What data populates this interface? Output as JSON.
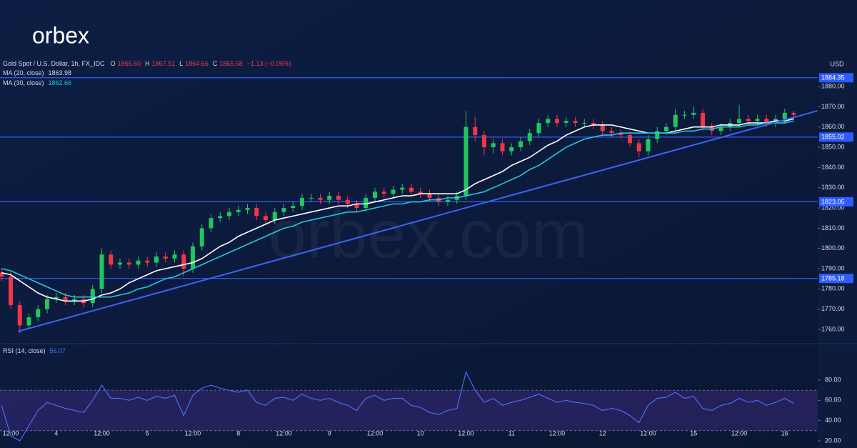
{
  "logo": "orbex",
  "watermark": "orbex.com",
  "chart_data": {
    "type": "candlestick",
    "legend": {
      "symbol": "Gold Spot / U.S. Dollar, 1h, FX_IDC",
      "o_label": "O",
      "o": "1866.60",
      "h_label": "H",
      "h": "1867.51",
      "l_label": "L",
      "l": "1864.66",
      "c_label": "C",
      "c": "1865.68",
      "change": "−1.13 (−0.06%)"
    },
    "currency": "USD",
    "categories": [
      null,
      "12:00",
      null,
      null,
      null,
      null,
      "4",
      null,
      null,
      null,
      null,
      "12:00",
      null,
      null,
      null,
      null,
      "5",
      null,
      null,
      null,
      null,
      "12:00",
      null,
      null,
      null,
      null,
      "8",
      null,
      null,
      null,
      null,
      "12:00",
      null,
      null,
      null,
      null,
      "9",
      null,
      null,
      null,
      null,
      "12:00",
      null,
      null,
      null,
      null,
      "10",
      null,
      null,
      null,
      null,
      "12:00",
      null,
      null,
      null,
      null,
      "11",
      null,
      null,
      null,
      null,
      "12:00",
      null,
      null,
      null,
      null,
      "12",
      null,
      null,
      null,
      null,
      "12:00",
      null,
      null,
      null,
      null,
      "15",
      null,
      null,
      null,
      null,
      "12:00",
      null,
      null,
      null,
      null,
      "16",
      null
    ],
    "open": [
      1788,
      1786,
      1772,
      1762,
      1766,
      1770,
      1775,
      1776,
      1774,
      1775,
      1773,
      1780,
      1797,
      1792,
      1793,
      1792,
      1794,
      1793,
      1796,
      1795,
      1797,
      1790,
      1801,
      1810,
      1815,
      1816,
      1818,
      1819,
      1820,
      1816,
      1814,
      1818,
      1820,
      1821,
      1825,
      1825,
      1824,
      1826,
      1824,
      1822,
      1820,
      1825,
      1828,
      1827,
      1829,
      1830,
      1828,
      1827,
      1825,
      1823,
      1824,
      1826,
      1860,
      1856,
      1850,
      1852,
      1848,
      1850,
      1853,
      1857,
      1862,
      1864,
      1862,
      1863,
      1862,
      1862,
      1861,
      1858,
      1857,
      1856,
      1852,
      1848,
      1854,
      1858,
      1860,
      1866,
      1866,
      1867,
      1860,
      1858,
      1860,
      1862,
      1864,
      1863,
      1864,
      1862,
      1864,
      1867
    ],
    "high": [
      1790,
      1788,
      1774,
      1768,
      1772,
      1777,
      1778,
      1778,
      1777,
      1777,
      1782,
      1800,
      1799,
      1795,
      1795,
      1796,
      1796,
      1798,
      1798,
      1799,
      1799,
      1803,
      1812,
      1817,
      1818,
      1820,
      1821,
      1822,
      1822,
      1818,
      1820,
      1822,
      1823,
      1827,
      1827,
      1827,
      1828,
      1828,
      1826,
      1824,
      1827,
      1830,
      1830,
      1831,
      1832,
      1832,
      1830,
      1829,
      1827,
      1826,
      1828,
      1868,
      1865,
      1858,
      1854,
      1854,
      1852,
      1855,
      1859,
      1864,
      1866,
      1866,
      1865,
      1865,
      1864,
      1864,
      1863,
      1860,
      1859,
      1858,
      1854,
      1856,
      1860,
      1862,
      1869,
      1868,
      1870,
      1869,
      1862,
      1862,
      1864,
      1871,
      1866,
      1866,
      1866,
      1866,
      1869,
      1868
    ],
    "low": [
      1784,
      1770,
      1758,
      1760,
      1764,
      1768,
      1773,
      1772,
      1772,
      1771,
      1771,
      1778,
      1790,
      1790,
      1790,
      1790,
      1791,
      1791,
      1793,
      1793,
      1786,
      1788,
      1799,
      1808,
      1813,
      1814,
      1816,
      1817,
      1814,
      1812,
      1812,
      1816,
      1818,
      1819,
      1823,
      1822,
      1822,
      1822,
      1820,
      1818,
      1818,
      1823,
      1825,
      1825,
      1827,
      1826,
      1825,
      1823,
      1821,
      1821,
      1822,
      1824,
      1853,
      1846,
      1847,
      1846,
      1846,
      1848,
      1851,
      1855,
      1860,
      1860,
      1860,
      1860,
      1860,
      1859,
      1856,
      1855,
      1854,
      1850,
      1845,
      1846,
      1852,
      1856,
      1858,
      1864,
      1864,
      1858,
      1856,
      1856,
      1858,
      1860,
      1861,
      1861,
      1860,
      1860,
      1862,
      1864
    ],
    "close": [
      1786,
      1772,
      1762,
      1766,
      1770,
      1775,
      1776,
      1774,
      1775,
      1773,
      1780,
      1797,
      1792,
      1793,
      1792,
      1794,
      1793,
      1796,
      1795,
      1797,
      1790,
      1801,
      1810,
      1815,
      1816,
      1818,
      1819,
      1820,
      1816,
      1814,
      1818,
      1820,
      1821,
      1825,
      1825,
      1824,
      1826,
      1824,
      1822,
      1820,
      1825,
      1828,
      1827,
      1829,
      1830,
      1828,
      1827,
      1825,
      1823,
      1824,
      1826,
      1860,
      1856,
      1850,
      1852,
      1848,
      1850,
      1853,
      1857,
      1862,
      1864,
      1862,
      1863,
      1862,
      1862,
      1861,
      1858,
      1857,
      1856,
      1852,
      1848,
      1854,
      1858,
      1860,
      1866,
      1866,
      1867,
      1860,
      1858,
      1860,
      1862,
      1864,
      1863,
      1864,
      1862,
      1864,
      1867,
      1866
    ],
    "up_color": "#22c55e",
    "down_color": "#f23645",
    "series": [
      {
        "name": "MA (20, close)",
        "color": "#ffffff",
        "last": 1863.98,
        "values": [
          1788,
          1787,
          1784,
          1781,
          1778,
          1776,
          1775,
          1774,
          1774,
          1774,
          1775,
          1777,
          1778,
          1780,
          1783,
          1785,
          1787,
          1789,
          1790,
          1791,
          1792,
          1793,
          1795,
          1798,
          1801,
          1803,
          1806,
          1808,
          1810,
          1812,
          1814,
          1815,
          1816,
          1817,
          1818,
          1819,
          1820,
          1821,
          1821,
          1822,
          1822,
          1823,
          1824,
          1825,
          1826,
          1826,
          1827,
          1827,
          1827,
          1827,
          1827,
          1829,
          1832,
          1834,
          1836,
          1838,
          1841,
          1843,
          1845,
          1848,
          1851,
          1853,
          1856,
          1858,
          1860,
          1861,
          1861,
          1861,
          1860,
          1859,
          1858,
          1857,
          1857,
          1857,
          1858,
          1859,
          1860,
          1860,
          1860,
          1861,
          1861,
          1861,
          1862,
          1862,
          1862,
          1863,
          1863,
          1864
        ]
      },
      {
        "name": "MA (30, close)",
        "color": "#26c6da",
        "last": 1862.66,
        "values": [
          1790,
          1789,
          1787,
          1785,
          1783,
          1781,
          1779,
          1777,
          1776,
          1776,
          1776,
          1776,
          1776,
          1777,
          1778,
          1780,
          1781,
          1783,
          1785,
          1786,
          1788,
          1790,
          1792,
          1794,
          1796,
          1798,
          1800,
          1802,
          1804,
          1806,
          1808,
          1810,
          1811,
          1813,
          1814,
          1815,
          1816,
          1817,
          1818,
          1818,
          1819,
          1820,
          1821,
          1822,
          1822,
          1823,
          1823,
          1824,
          1824,
          1825,
          1825,
          1826,
          1827,
          1828,
          1830,
          1832,
          1834,
          1836,
          1839,
          1841,
          1844,
          1847,
          1850,
          1852,
          1854,
          1855,
          1856,
          1856,
          1857,
          1857,
          1857,
          1857,
          1857,
          1857,
          1857,
          1858,
          1858,
          1859,
          1859,
          1860,
          1860,
          1860,
          1861,
          1861,
          1862,
          1862,
          1862,
          1863
        ]
      }
    ],
    "ylim": [
      1753.3,
      1894.5
    ],
    "yticks": [
      {
        "value": 1760,
        "label": "1760.00"
      },
      {
        "value": 1770,
        "label": "1770.00"
      },
      {
        "value": 1780,
        "label": "1780.00"
      },
      {
        "value": 1790,
        "label": "1790.00"
      },
      {
        "value": 1800,
        "label": "1800.00"
      },
      {
        "value": 1810,
        "label": "1810.00"
      },
      {
        "value": 1820,
        "label": "1820.00"
      },
      {
        "value": 1830,
        "label": "1830.00"
      },
      {
        "value": 1840,
        "label": "1840.00"
      },
      {
        "value": 1850,
        "label": "1850.00"
      },
      {
        "value": 1860,
        "label": "1860.00"
      },
      {
        "value": 1870,
        "label": "1870.00"
      },
      {
        "value": 1880,
        "label": "1880.00"
      }
    ],
    "levels": [
      1884.35,
      1855.02,
      1823.05,
      1785.18
    ],
    "level_color": "#2f5cff",
    "trendline": {
      "start": [
        1.8,
        1759
      ],
      "end": [
        89.6,
        1868
      ],
      "color": "#3b63f5"
    },
    "rsi": {
      "name": "RSI (14, close)",
      "last": 56.07,
      "color": "#4a6cf7",
      "values": [
        55,
        25,
        20,
        35,
        50,
        58,
        55,
        52,
        50,
        48,
        60,
        75,
        62,
        62,
        60,
        63,
        60,
        64,
        62,
        65,
        45,
        65,
        72,
        75,
        72,
        70,
        68,
        70,
        58,
        55,
        62,
        63,
        60,
        66,
        62,
        60,
        62,
        58,
        55,
        50,
        62,
        65,
        60,
        62,
        62,
        55,
        53,
        48,
        46,
        50,
        52,
        88,
        70,
        58,
        62,
        55,
        58,
        60,
        63,
        66,
        62,
        58,
        60,
        58,
        57,
        55,
        50,
        52,
        50,
        45,
        38,
        55,
        62,
        63,
        68,
        62,
        64,
        52,
        50,
        55,
        57,
        62,
        58,
        60,
        55,
        58,
        62,
        57
      ],
      "ylim": [
        12.9,
        115.3
      ],
      "band": [
        30,
        70
      ],
      "yticks": [
        {
          "value": 20,
          "label": "20.00"
        },
        {
          "value": 40,
          "label": "40.00"
        },
        {
          "value": 60,
          "label": "60.00"
        },
        {
          "value": 80,
          "label": "80.00"
        }
      ]
    }
  }
}
